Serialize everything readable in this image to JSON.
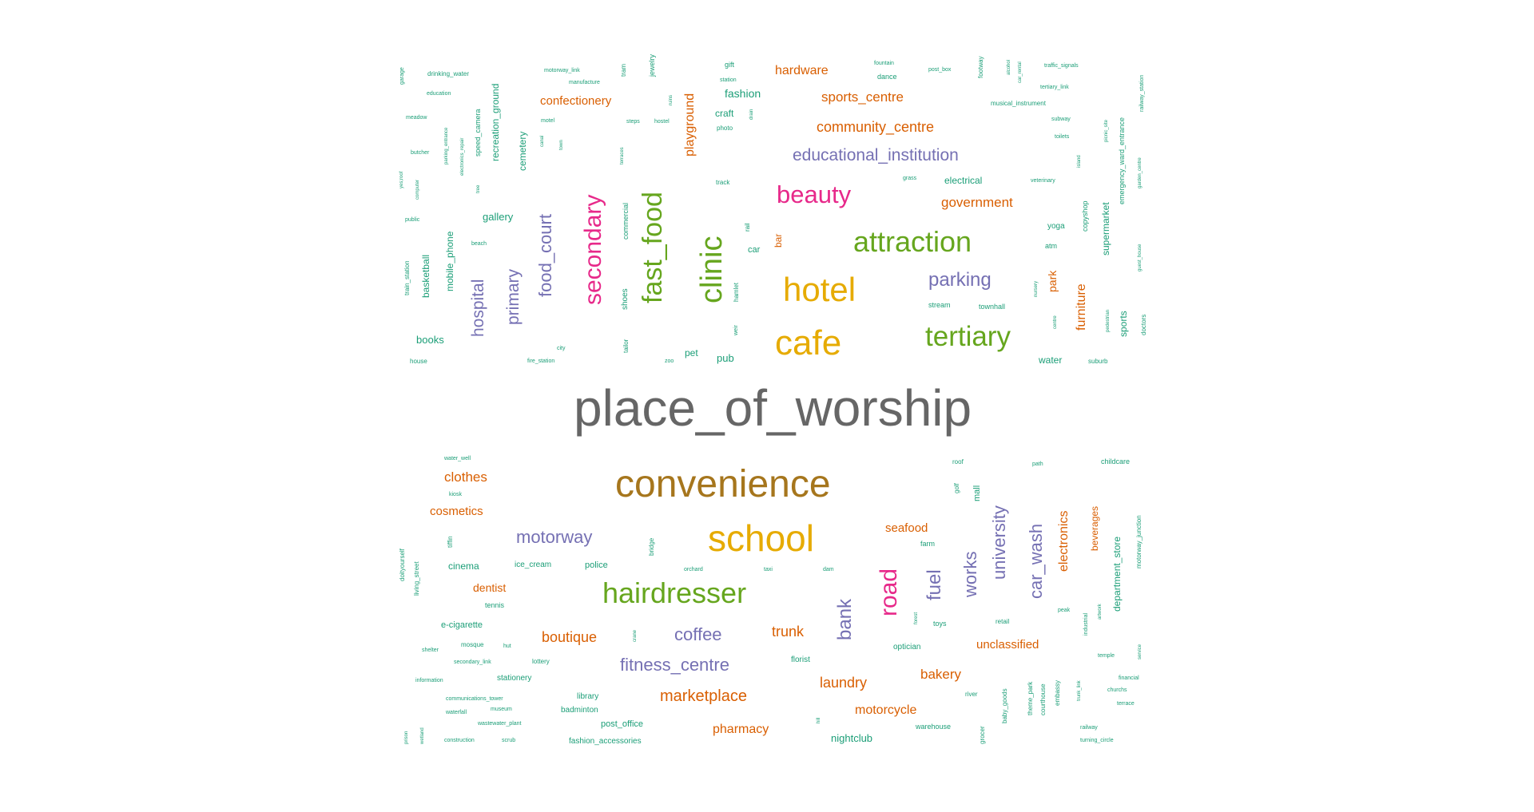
{
  "colors": {
    "gray": "#666666",
    "brown": "#A6761D",
    "gold": "#E6AB02",
    "green": "#66A61E",
    "pink": "#E7298A",
    "purple": "#7570B3",
    "orange": "#D95F02",
    "teal": "#1B9E77"
  },
  "words": {
    "place_of_worship": "place_of_worship",
    "convenience": "convenience",
    "school": "school",
    "hairdresser": "hairdresser",
    "cafe": "cafe",
    "hotel": "hotel",
    "attraction": "attraction",
    "clinic": "clinic",
    "fast_food": "fast_food",
    "secondary": "secondary",
    "beauty": "beauty",
    "tertiary": "tertiary",
    "road": "road",
    "parking": "parking",
    "food_court": "food_court",
    "primary": "primary",
    "hospital": "hospital",
    "educational_institution": "educational_institution",
    "community_centre": "community_centre",
    "sports_centre": "sports_centre",
    "hardware": "hardware",
    "confectionery": "confectionery",
    "government": "government",
    "motorway": "motorway",
    "coffee": "coffee",
    "fitness_centre": "fitness_centre",
    "bank": "bank",
    "fuel": "fuel",
    "works": "works",
    "university": "university",
    "car_wash": "car_wash",
    "electronics": "electronics",
    "clothes": "clothes",
    "cosmetics": "cosmetics",
    "marketplace": "marketplace",
    "boutique": "boutique",
    "trunk": "trunk",
    "laundry": "laundry",
    "bakery": "bakery",
    "motorcycle": "motorcycle",
    "pharmacy": "pharmacy",
    "unclassified": "unclassified",
    "seafood": "seafood",
    "dentist": "dentist",
    "fashion": "fashion",
    "playground": "playground",
    "recreation_ground": "recreation_ground",
    "cemetery": "cemetery",
    "gallery": "gallery",
    "books": "books",
    "mobile_phone": "mobile_phone",
    "basketball": "basketball",
    "craft": "craft",
    "electrical": "electrical",
    "parks": "park",
    "furniture": "furniture",
    "supermarket": "supermarket",
    "copyshop": "copyshop",
    "sports": "sports",
    "bar": "bar",
    "pub": "pub",
    "pet": "pet",
    "car": "car",
    "water": "water",
    "beverages": "beverages",
    "department_store": "department_store",
    "childcare": "childcare",
    "mall": "mall",
    "cinema": "cinema",
    "ice_cream": "ice_cream",
    "police": "police",
    "e_cigarette": "e-cigarette",
    "stationery": "stationery",
    "library": "library",
    "post_office": "post_office",
    "badminton": "badminton",
    "florist": "florist",
    "nightclub": "nightclub",
    "optician": "optician",
    "warehouse": "warehouse",
    "farm": "farm",
    "toys": "toys",
    "retail": "retail",
    "emergency_ward_entrance": "emergency_ward_entrance",
    "speed_camera": "speed_camera",
    "shoes": "shoes",
    "commercial": "commercial",
    "townhall": "townhall",
    "stream": "stream",
    "yoga": "yoga",
    "atm": "atm",
    "musical_instrument": "musical_instrument",
    "drinking_water": "drinking_water",
    "manufacture": "manufacture",
    "motorway_link": "motorway_link",
    "education": "education",
    "meadow": "meadow",
    "butcher": "butcher",
    "public": "public",
    "house": "house",
    "train_station": "train_station",
    "beach": "beach",
    "tailor": "tailor",
    "city": "city",
    "fire_station": "fire_station",
    "zoo": "zoo",
    "track": "track",
    "rail": "rail",
    "hamlet": "hamlet",
    "gift": "gift",
    "station": "station",
    "photo": "photo",
    "dance": "dance",
    "fountain": "fountain",
    "post_box": "post_box",
    "traffic_signals": "traffic_signals",
    "tertiary_link": "tertiary_link",
    "subway": "subway",
    "toilets": "toilets",
    "grass": "grass",
    "veterinary": "veterinary",
    "suburb": "suburb",
    "doctors": "doctors",
    "pedestrian": "pedestrian",
    "garden_centre": "garden_centre",
    "railway_station": "railway_station",
    "water_well": "water_well",
    "kiosk": "kiosk",
    "doityourself": "doityourself",
    "living_street": "living_street",
    "tennis": "tennis",
    "mosque": "mosque",
    "hut": "hut",
    "shelter": "shelter",
    "secondary_link": "secondary_link",
    "lottery": "lottery",
    "information": "information",
    "communications_tower": "communications_tower",
    "waterfall": "waterfall",
    "museum": "museum",
    "wastewater_plant": "wastewater_plant",
    "construction": "construction",
    "scrub": "scrub",
    "fashion_accessories": "fashion_accessories",
    "orchard": "orchard",
    "taxi": "taxi",
    "dam": "dam",
    "bridge": "bridge",
    "forest": "forest",
    "roof": "roof",
    "path": "path",
    "golf": "golf",
    "peak": "peak",
    "industrial": "industrial",
    "artwork": "artwork",
    "temple": "temple",
    "service": "service",
    "financial": "financial",
    "churchs": "churchs",
    "terrace": "terrace",
    "railway": "railway",
    "turning_circle": "turning_circle",
    "river": "river",
    "baby_goods": "baby_goods",
    "theme_park": "theme_park",
    "courthouse": "courthouse",
    "embassy": "embassy",
    "motorway_junction": "motorway_junction",
    "garage": "garage",
    "steps": "steps",
    "hostel": "hostel",
    "motel": "motel",
    "canal": "canal",
    "town": "town",
    "tree": "tree",
    "computer": "computer",
    "jewelry": "jewelry",
    "tram": "tram",
    "ruins": "ruins",
    "drain": "drain",
    "electronics_repair": "electronics_repair",
    "parking_entrance": "parking_entrance",
    "yes_roof": "yes;roof",
    "terraces": "terraces",
    "island": "island",
    "picnic_site": "picnic_site",
    "guest_house": "guest_house",
    "nursery": "nursery",
    "centre": "centre",
    "weir": "weir",
    "footway": "footway",
    "grocer": "grocer",
    "hill": "hill",
    "trunk_link": "trunk_link",
    "wetland": "wetland",
    "car_rental": "car_rental",
    "alcohol": "alcohol",
    "crane": "crane",
    "tiffin": "tiffin",
    "prison": "prison"
  }
}
